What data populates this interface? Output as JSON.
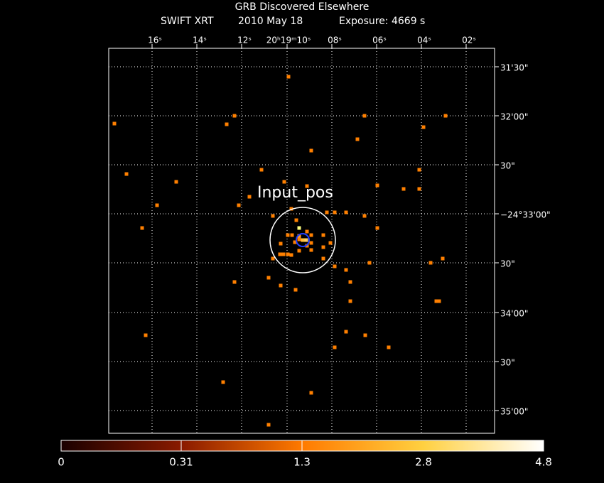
{
  "header": {
    "title": "GRB Discovered Elsewhere",
    "instrument": "SWIFT XRT",
    "date": "2010 May 18",
    "exposure": "Exposure: 4669 s"
  },
  "ra_labels": [
    "16ˢ",
    "14ˢ",
    "12ˢ",
    "20ʰ19ᵐ10ˢ",
    "08ˢ",
    "06ˢ",
    "04ˢ",
    "02ˢ"
  ],
  "dec_labels": [
    "31'30\"",
    "32'00\"",
    "30\"",
    "−24°33'00\"",
    "30\"",
    "34'00\"",
    "30\"",
    "35'00\""
  ],
  "annotation": "Input_pos",
  "colorbar": {
    "labels": [
      "0",
      "0.31",
      "1.3",
      "2.8",
      "4.8"
    ]
  }
}
